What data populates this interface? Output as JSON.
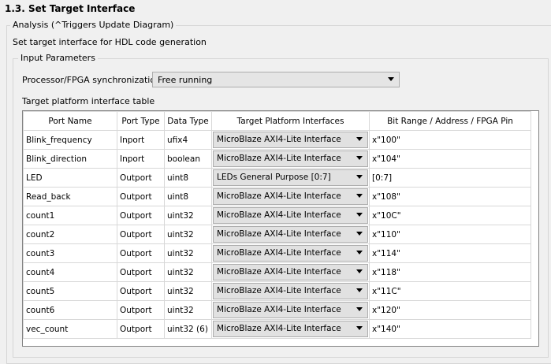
{
  "title": "1.3. Set Target Interface",
  "analysis_legend": "Analysis (^Triggers Update Diagram)",
  "description": "Set target interface for HDL code generation",
  "input_legend": "Input Parameters",
  "sync_label": "Processor/FPGA synchronization:",
  "sync_value": "Free running",
  "table_label": "Target platform interface table",
  "columns": [
    "Port Name",
    "Port Type",
    "Data Type",
    "Target Platform Interfaces",
    "Bit Range / Address / FPGA Pin"
  ],
  "rows": [
    {
      "name": "Blink_frequency",
      "type": "Inport",
      "dtype": "ufix4",
      "iface": "MicroBlaze AXI4-Lite Interface",
      "addr": "x\"100\""
    },
    {
      "name": "Blink_direction",
      "type": "Inport",
      "dtype": "boolean",
      "iface": "MicroBlaze AXI4-Lite Interface",
      "addr": "x\"104\""
    },
    {
      "name": "LED",
      "type": "Outport",
      "dtype": "uint8",
      "iface": "LEDs General Purpose [0:7]",
      "addr": "[0:7]"
    },
    {
      "name": "Read_back",
      "type": "Outport",
      "dtype": "uint8",
      "iface": "MicroBlaze AXI4-Lite Interface",
      "addr": "x\"108\""
    },
    {
      "name": "count1",
      "type": "Outport",
      "dtype": "uint32",
      "iface": "MicroBlaze AXI4-Lite Interface",
      "addr": "x\"10C\""
    },
    {
      "name": "count2",
      "type": "Outport",
      "dtype": "uint32",
      "iface": "MicroBlaze AXI4-Lite Interface",
      "addr": "x\"110\""
    },
    {
      "name": "count3",
      "type": "Outport",
      "dtype": "uint32",
      "iface": "MicroBlaze AXI4-Lite Interface",
      "addr": "x\"114\""
    },
    {
      "name": "count4",
      "type": "Outport",
      "dtype": "uint32",
      "iface": "MicroBlaze AXI4-Lite Interface",
      "addr": "x\"118\""
    },
    {
      "name": "count5",
      "type": "Outport",
      "dtype": "uint32",
      "iface": "MicroBlaze AXI4-Lite Interface",
      "addr": "x\"11C\""
    },
    {
      "name": "count6",
      "type": "Outport",
      "dtype": "uint32",
      "iface": "MicroBlaze AXI4-Lite Interface",
      "addr": "x\"120\""
    },
    {
      "name": "vec_count",
      "type": "Outport",
      "dtype": "uint32 (6)",
      "iface": "MicroBlaze AXI4-Lite Interface",
      "addr": "x\"140\""
    }
  ]
}
